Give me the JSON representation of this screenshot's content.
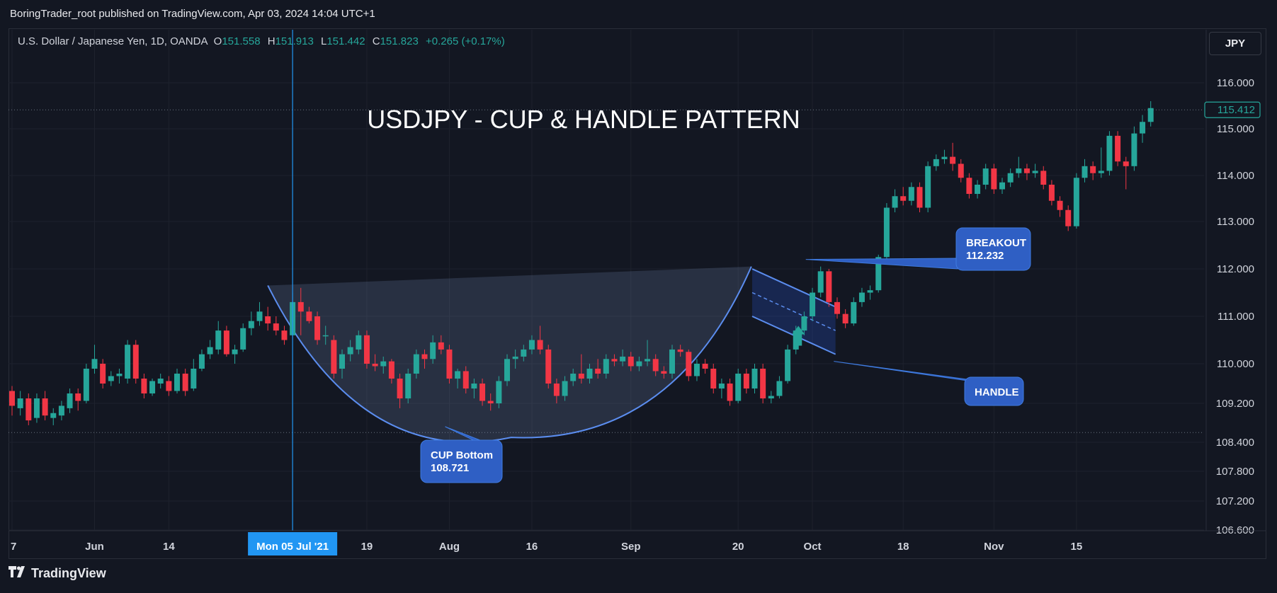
{
  "header": {
    "published_text": "BoringTrader_root published on TradingView.com, Apr 03, 2024 14:04 UTC+1"
  },
  "legend": {
    "symbol": "U.S. Dollar / Japanese Yen, 1D, OANDA",
    "o_label": "O",
    "o_value": "151.558",
    "h_label": "H",
    "h_value": "151.913",
    "l_label": "L",
    "l_value": "151.442",
    "c_label": "C",
    "c_value": "151.823",
    "change": "+0.265 (+0.17%)"
  },
  "toolbar": {
    "currency": "JPY"
  },
  "footer": {
    "logo_text": "TradingView",
    "logo_icon": "tradingview-logo-icon"
  },
  "colors": {
    "background": "#131722",
    "up": "#26a69a",
    "down": "#f23645",
    "accent": "#2962ff",
    "callout": "#2f5fc4",
    "line": "#5b8def"
  },
  "chart_data": {
    "type": "candlestick",
    "title": "USDJPY - CUP & HANDLE PATTERN",
    "ylim": [
      106.6,
      116.6
    ],
    "y_ticks": [
      "116.000",
      "115.000",
      "114.000",
      "113.000",
      "112.000",
      "111.000",
      "110.000",
      "109.200",
      "108.400",
      "107.800",
      "107.200",
      "106.600"
    ],
    "x_ticks": [
      {
        "label": "7",
        "i": 0
      },
      {
        "label": "Jun",
        "i": 10
      },
      {
        "label": "14",
        "i": 19
      },
      {
        "label": "19",
        "i": 43
      },
      {
        "label": "Aug",
        "i": 53
      },
      {
        "label": "16",
        "i": 63
      },
      {
        "label": "Sep",
        "i": 75
      },
      {
        "label": "20",
        "i": 88
      },
      {
        "label": "Oct",
        "i": 97
      },
      {
        "label": "18",
        "i": 108
      },
      {
        "label": "Nov",
        "i": 119
      },
      {
        "label": "15",
        "i": 129
      }
    ],
    "crosshair": {
      "i": 34,
      "label": "Mon 05 Jul '21"
    },
    "last_price": "115.412",
    "last_price_value": 115.412,
    "horizontal_level": 108.6,
    "annotations": [
      {
        "name": "cup-bottom",
        "line1": "CUP Bottom",
        "line2": "108.721"
      },
      {
        "name": "breakout",
        "line1": "BREAKOUT",
        "line2": "112.232"
      },
      {
        "name": "handle",
        "line1": "HANDLE"
      }
    ],
    "candles": [
      [
        109.45,
        109.15,
        109.55,
        108.95
      ],
      [
        109.1,
        109.3,
        109.45,
        108.95
      ],
      [
        109.3,
        108.85,
        109.4,
        108.75
      ],
      [
        108.9,
        109.3,
        109.4,
        108.8
      ],
      [
        109.3,
        108.95,
        109.45,
        108.85
      ],
      [
        108.9,
        109.0,
        109.1,
        108.75
      ],
      [
        108.95,
        109.15,
        109.25,
        108.85
      ],
      [
        109.1,
        109.4,
        109.5,
        109.0
      ],
      [
        109.4,
        109.25,
        109.5,
        109.05
      ],
      [
        109.25,
        109.9,
        110.0,
        109.2
      ],
      [
        109.9,
        110.1,
        110.4,
        109.8
      ],
      [
        110.0,
        109.6,
        110.1,
        109.5
      ],
      [
        109.65,
        109.75,
        109.85,
        109.55
      ],
      [
        109.75,
        109.8,
        109.9,
        109.6
      ],
      [
        109.7,
        110.4,
        110.5,
        109.6
      ],
      [
        110.4,
        109.7,
        110.5,
        109.6
      ],
      [
        109.7,
        109.4,
        109.8,
        109.3
      ],
      [
        109.4,
        109.65,
        109.7,
        109.35
      ],
      [
        109.6,
        109.7,
        109.8,
        109.5
      ],
      [
        109.65,
        109.45,
        109.75,
        109.35
      ],
      [
        109.45,
        109.8,
        109.9,
        109.4
      ],
      [
        109.8,
        109.45,
        109.9,
        109.35
      ],
      [
        109.5,
        109.9,
        110.1,
        109.45
      ],
      [
        109.9,
        110.2,
        110.3,
        109.85
      ],
      [
        110.2,
        110.35,
        110.5,
        110.1
      ],
      [
        110.3,
        110.7,
        110.9,
        110.2
      ],
      [
        110.7,
        110.2,
        110.8,
        110.15
      ],
      [
        110.2,
        110.3,
        110.4,
        110.0
      ],
      [
        110.3,
        110.75,
        110.85,
        110.25
      ],
      [
        110.75,
        110.9,
        111.1,
        110.6
      ],
      [
        110.9,
        111.1,
        111.3,
        110.8
      ],
      [
        111.0,
        110.85,
        111.2,
        110.7
      ],
      [
        110.85,
        110.7,
        111.0,
        110.6
      ],
      [
        110.7,
        110.5,
        110.8,
        110.4
      ],
      [
        110.6,
        111.3,
        111.5,
        110.5
      ],
      [
        111.3,
        111.1,
        111.6,
        110.6
      ],
      [
        111.1,
        110.9,
        111.2,
        110.85
      ],
      [
        111.0,
        110.5,
        111.1,
        110.4
      ],
      [
        110.6,
        110.6,
        110.8,
        110.4
      ],
      [
        110.5,
        109.8,
        110.6,
        109.7
      ],
      [
        109.9,
        110.2,
        110.3,
        109.7
      ],
      [
        110.2,
        110.35,
        110.5,
        110.05
      ],
      [
        110.3,
        110.6,
        110.7,
        110.2
      ],
      [
        110.6,
        110.0,
        110.7,
        109.9
      ],
      [
        110.0,
        109.95,
        110.2,
        109.85
      ],
      [
        109.95,
        110.05,
        110.15,
        109.8
      ],
      [
        110.05,
        109.7,
        110.1,
        109.6
      ],
      [
        109.7,
        109.3,
        109.8,
        109.1
      ],
      [
        109.3,
        109.8,
        109.9,
        109.2
      ],
      [
        109.8,
        110.2,
        110.3,
        109.7
      ],
      [
        110.2,
        110.1,
        110.3,
        109.9
      ],
      [
        110.1,
        110.45,
        110.6,
        110.0
      ],
      [
        110.45,
        110.3,
        110.6,
        110.2
      ],
      [
        110.3,
        109.7,
        110.4,
        109.6
      ],
      [
        109.7,
        109.85,
        109.9,
        109.5
      ],
      [
        109.85,
        109.5,
        109.95,
        109.4
      ],
      [
        109.5,
        109.6,
        109.7,
        109.3
      ],
      [
        109.6,
        109.25,
        109.7,
        109.15
      ],
      [
        109.25,
        109.2,
        109.4,
        109.05
      ],
      [
        109.2,
        109.65,
        109.75,
        109.1
      ],
      [
        109.65,
        110.1,
        110.2,
        109.55
      ],
      [
        110.1,
        110.15,
        110.3,
        109.9
      ],
      [
        110.15,
        110.3,
        110.4,
        110.05
      ],
      [
        110.3,
        110.5,
        110.6,
        110.2
      ],
      [
        110.5,
        110.3,
        110.8,
        110.2
      ],
      [
        110.3,
        109.6,
        110.4,
        109.5
      ],
      [
        109.6,
        109.35,
        109.7,
        109.2
      ],
      [
        109.35,
        109.65,
        109.75,
        109.25
      ],
      [
        109.65,
        109.8,
        109.9,
        109.55
      ],
      [
        109.8,
        109.7,
        110.2,
        109.6
      ],
      [
        109.7,
        109.9,
        110.0,
        109.6
      ],
      [
        109.9,
        109.8,
        110.1,
        109.7
      ],
      [
        109.8,
        110.1,
        110.2,
        109.7
      ],
      [
        110.1,
        110.05,
        110.2,
        109.95
      ],
      [
        110.05,
        110.15,
        110.3,
        109.95
      ],
      [
        110.15,
        109.95,
        110.25,
        109.85
      ],
      [
        109.95,
        110.05,
        110.15,
        109.85
      ],
      [
        110.05,
        110.1,
        110.5,
        109.95
      ],
      [
        110.1,
        109.85,
        110.2,
        109.75
      ],
      [
        109.85,
        109.8,
        109.95,
        109.7
      ],
      [
        109.8,
        110.3,
        110.4,
        109.7
      ],
      [
        110.3,
        110.25,
        110.4,
        110.15
      ],
      [
        110.25,
        109.75,
        110.3,
        109.65
      ],
      [
        109.75,
        110.0,
        110.1,
        109.65
      ],
      [
        110.0,
        109.9,
        110.1,
        109.8
      ],
      [
        109.9,
        109.5,
        110.0,
        109.4
      ],
      [
        109.5,
        109.6,
        109.7,
        109.3
      ],
      [
        109.6,
        109.25,
        109.7,
        109.15
      ],
      [
        109.25,
        109.8,
        109.9,
        109.2
      ],
      [
        109.8,
        109.5,
        109.9,
        109.4
      ],
      [
        109.5,
        109.9,
        110.0,
        109.4
      ],
      [
        109.9,
        109.3,
        110.0,
        109.2
      ],
      [
        109.3,
        109.35,
        109.45,
        109.2
      ],
      [
        109.35,
        109.65,
        109.75,
        109.3
      ],
      [
        109.65,
        110.3,
        110.4,
        109.6
      ],
      [
        110.3,
        110.7,
        110.8,
        110.2
      ],
      [
        110.7,
        111.0,
        111.1,
        110.6
      ],
      [
        111.0,
        111.5,
        111.6,
        110.9
      ],
      [
        111.5,
        111.95,
        112.05,
        111.4
      ],
      [
        111.95,
        111.3,
        112.0,
        111.2
      ],
      [
        111.3,
        111.05,
        111.4,
        110.95
      ],
      [
        111.05,
        110.85,
        111.15,
        110.75
      ],
      [
        110.85,
        111.3,
        111.4,
        110.8
      ],
      [
        111.3,
        111.5,
        111.6,
        111.2
      ],
      [
        111.5,
        111.55,
        111.65,
        111.35
      ],
      [
        111.55,
        112.25,
        112.3,
        111.5
      ],
      [
        112.25,
        113.3,
        113.4,
        112.1
      ],
      [
        113.3,
        113.55,
        113.7,
        113.2
      ],
      [
        113.55,
        113.45,
        113.75,
        113.35
      ],
      [
        113.45,
        113.75,
        113.85,
        113.35
      ],
      [
        113.75,
        113.3,
        113.85,
        113.2
      ],
      [
        113.3,
        114.2,
        114.3,
        113.2
      ],
      [
        114.2,
        114.35,
        114.45,
        114.1
      ],
      [
        114.35,
        114.4,
        114.55,
        114.25
      ],
      [
        114.4,
        114.25,
        114.7,
        114.1
      ],
      [
        114.25,
        113.95,
        114.35,
        113.85
      ],
      [
        113.95,
        113.6,
        114.05,
        113.5
      ],
      [
        113.6,
        113.8,
        113.9,
        113.5
      ],
      [
        113.8,
        114.15,
        114.25,
        113.7
      ],
      [
        114.15,
        113.7,
        114.25,
        113.6
      ],
      [
        113.7,
        113.85,
        113.95,
        113.6
      ],
      [
        113.85,
        114.05,
        114.15,
        113.75
      ],
      [
        114.05,
        114.15,
        114.4,
        113.95
      ],
      [
        114.15,
        114.05,
        114.25,
        113.9
      ],
      [
        114.05,
        114.1,
        114.25,
        113.95
      ],
      [
        114.1,
        113.8,
        114.2,
        113.7
      ],
      [
        113.8,
        113.45,
        113.9,
        113.35
      ],
      [
        113.45,
        113.25,
        113.55,
        113.1
      ],
      [
        113.25,
        112.9,
        113.35,
        112.8
      ],
      [
        112.9,
        113.95,
        114.05,
        112.85
      ],
      [
        113.95,
        114.2,
        114.35,
        113.85
      ],
      [
        114.2,
        114.05,
        114.3,
        113.9
      ],
      [
        114.05,
        114.1,
        114.6,
        113.95
      ],
      [
        114.1,
        114.85,
        114.95,
        114.0
      ],
      [
        114.85,
        114.3,
        114.95,
        114.2
      ],
      [
        114.3,
        114.2,
        114.4,
        113.7
      ],
      [
        114.2,
        114.9,
        115.05,
        114.1
      ],
      [
        114.9,
        115.15,
        115.3,
        114.7
      ],
      [
        115.15,
        115.45,
        115.6,
        115.05
      ]
    ]
  }
}
